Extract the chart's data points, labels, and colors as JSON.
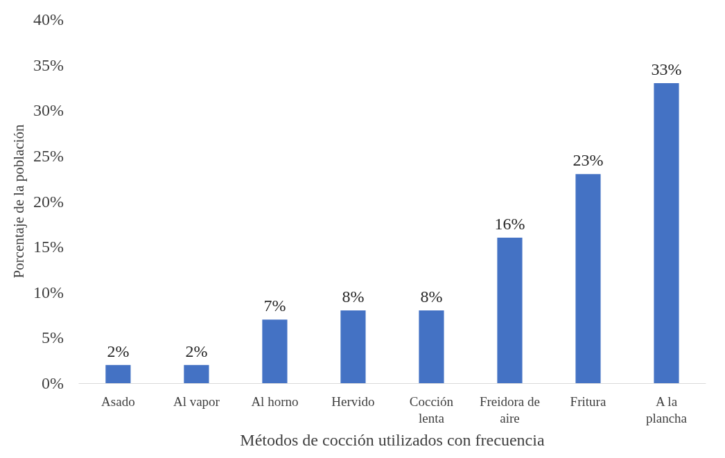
{
  "chart_data": {
    "type": "bar",
    "xlabel": "Métodos de cocción utilizados con frecuencia",
    "ylabel": "Porcentaje de la población",
    "categories": [
      "Asado",
      "Al vapor",
      "Al horno",
      "Hervido",
      "Cocción\nlenta",
      "Freidora de\naire",
      "Fritura",
      "A la\nplancha"
    ],
    "values": [
      2,
      2,
      7,
      8,
      8,
      16,
      23,
      33
    ],
    "value_labels": [
      "2%",
      "2%",
      "7%",
      "8%",
      "8%",
      "16%",
      "23%",
      "33%"
    ],
    "color": "#4472c4",
    "ylim": [
      0,
      40
    ],
    "yticks": [
      {
        "value": 0,
        "label": "0%"
      },
      {
        "value": 5,
        "label": "5%"
      },
      {
        "value": 10,
        "label": "10%"
      },
      {
        "value": 15,
        "label": "15%"
      },
      {
        "value": 20,
        "label": "20%"
      },
      {
        "value": 25,
        "label": "25%"
      },
      {
        "value": 30,
        "label": "30%"
      },
      {
        "value": 35,
        "label": "35%"
      },
      {
        "value": 40,
        "label": "40%"
      }
    ],
    "grid": false
  }
}
